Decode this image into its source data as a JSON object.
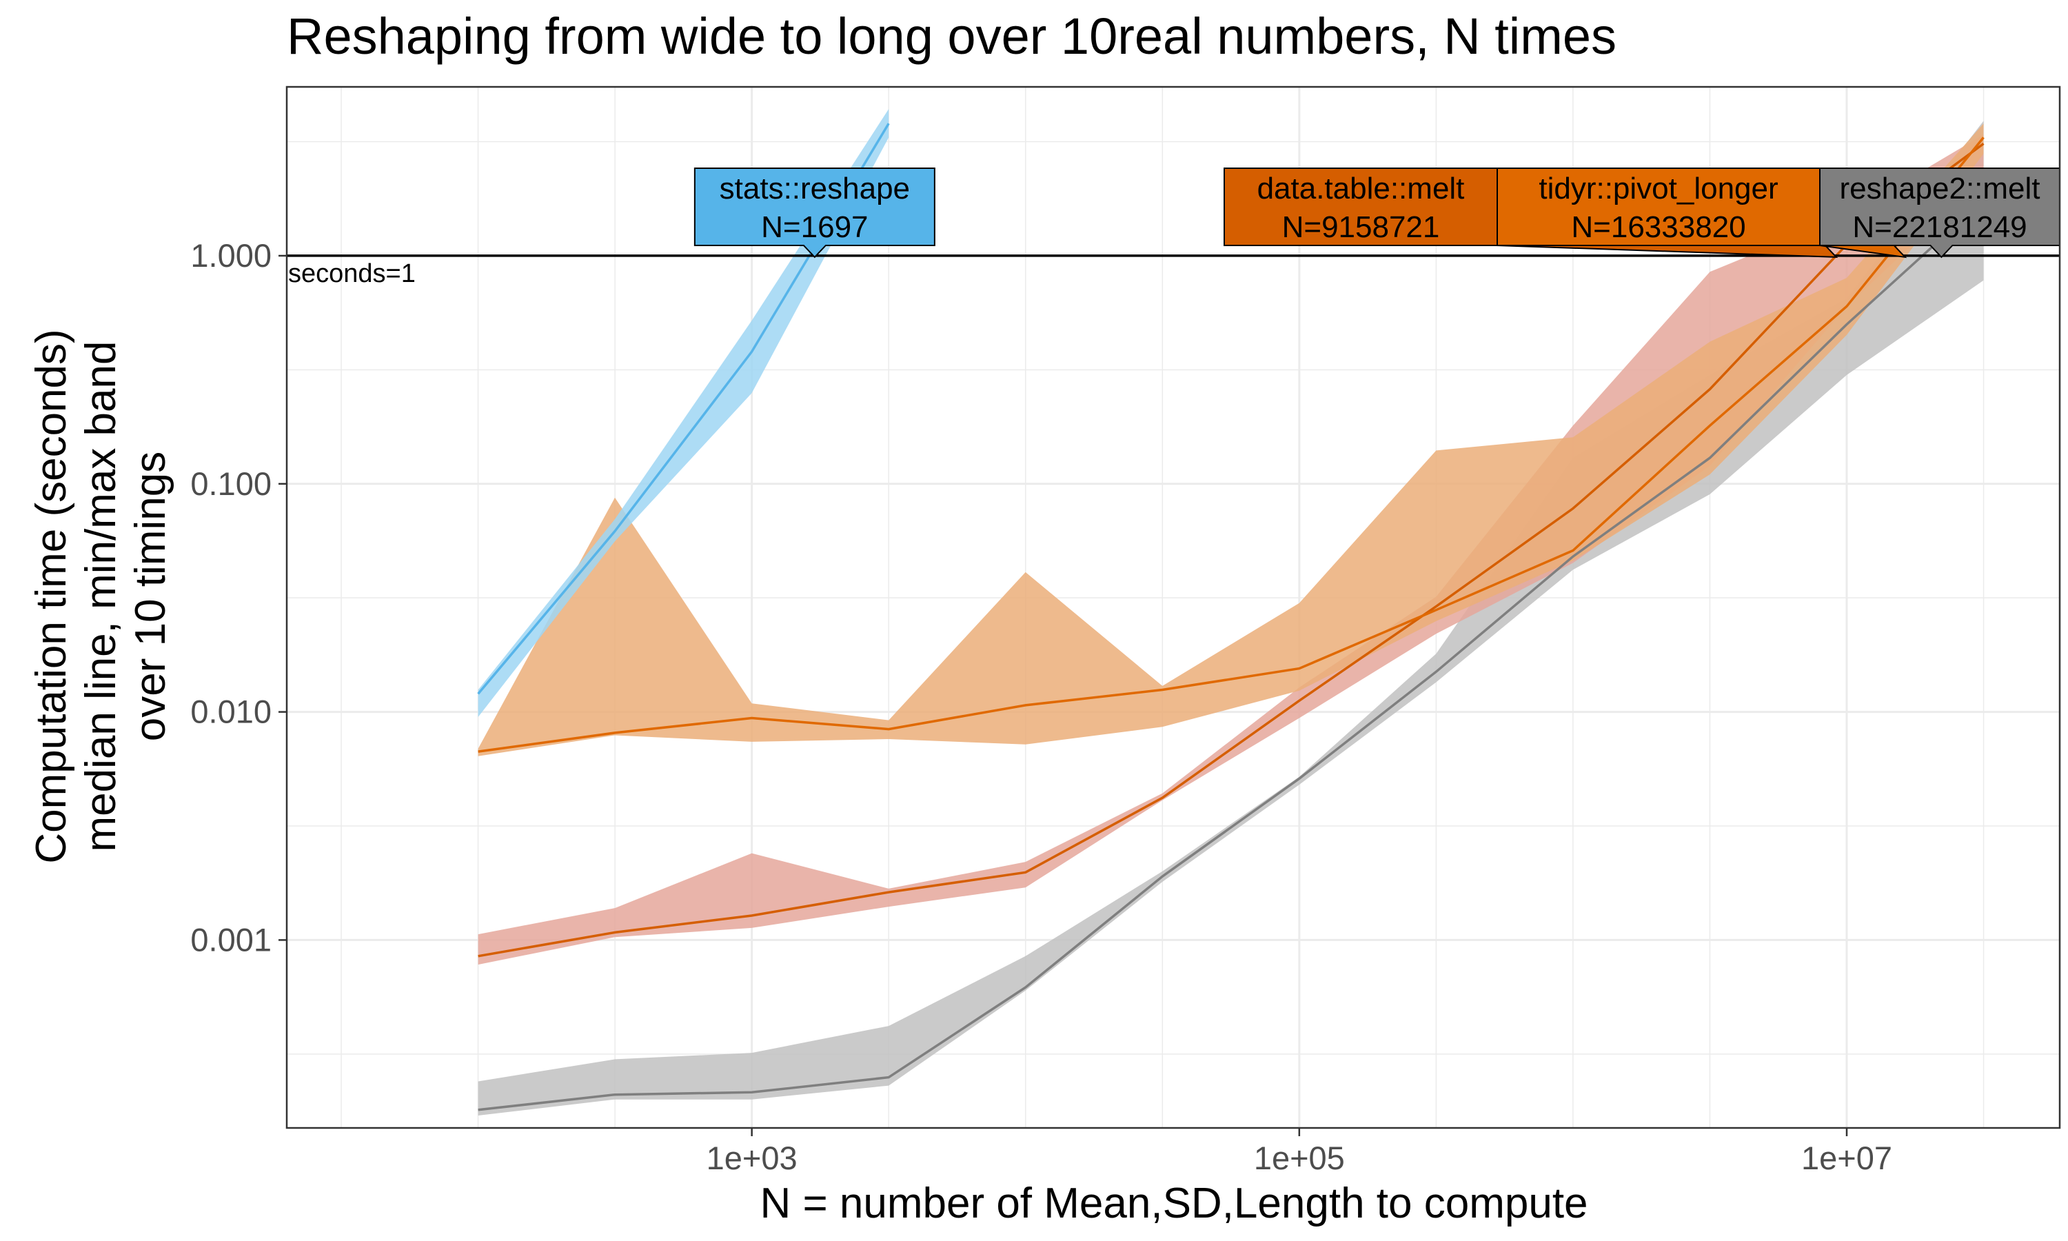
{
  "chart_data": {
    "type": "line",
    "title": "Reshaping from wide to long over 10real numbers, N times",
    "xlabel": "N = number of Mean,SD,Length to compute",
    "ylabel_lines": [
      "Computation time (seconds)",
      "median line, min/max band",
      "over 10 timings"
    ],
    "x_scale": "log10",
    "y_scale": "log10",
    "xlim": [
      20,
      60000000
    ],
    "ylim": [
      0.00015,
      5.5
    ],
    "grid": true,
    "x_ticks": [
      {
        "value": 1000,
        "label": "1e+03"
      },
      {
        "value": 100000,
        "label": "1e+05"
      },
      {
        "value": 10000000,
        "label": "1e+07"
      }
    ],
    "y_ticks": [
      {
        "value": 0.001,
        "label": "0.001"
      },
      {
        "value": 0.01,
        "label": "0.010"
      },
      {
        "value": 0.1,
        "label": "0.100"
      },
      {
        "value": 1,
        "label": "1.000"
      }
    ],
    "hline": {
      "y": 1,
      "label": "seconds=1"
    },
    "series": [
      {
        "name": "stats::reshape",
        "color": "#56B4E9",
        "band_color": "#9FD6F3",
        "x": [
          100,
          316,
          1000,
          3162
        ],
        "median": [
          0.012,
          0.062,
          0.38,
          3.8
        ],
        "min": [
          0.0095,
          0.056,
          0.25,
          3.3
        ],
        "max": [
          0.0125,
          0.07,
          0.52,
          4.4
        ],
        "label_text": "N=1697",
        "label_x": 1697
      },
      {
        "name": "data.table::melt",
        "color": "#D55E00",
        "band_color": "#E5A79B",
        "x": [
          100,
          316,
          1000,
          3162,
          10000,
          31623,
          100000,
          316228,
          1000000,
          3162278,
          10000000,
          31622777
        ],
        "median": [
          0.00085,
          0.00108,
          0.00128,
          0.00162,
          0.00198,
          0.0042,
          0.0112,
          0.029,
          0.078,
          0.26,
          1.12,
          3.1
        ],
        "min": [
          0.00078,
          0.00103,
          0.00113,
          0.0014,
          0.0017,
          0.0041,
          0.0094,
          0.022,
          0.045,
          0.12,
          0.6,
          2.2
        ],
        "max": [
          0.00106,
          0.00138,
          0.0024,
          0.00168,
          0.0022,
          0.0044,
          0.0128,
          0.032,
          0.18,
          0.85,
          1.5,
          3.4
        ],
        "label_text": "N=9158721",
        "label_x": 9158721
      },
      {
        "name": "tidyr::pivot_longer",
        "color": "#E06900",
        "band_color": "#EBAE79",
        "x": [
          100,
          316,
          1000,
          3162,
          10000,
          31623,
          100000,
          316228,
          1000000,
          3162278,
          10000000,
          31622777
        ],
        "median": [
          0.0067,
          0.0081,
          0.0094,
          0.0084,
          0.0107,
          0.0125,
          0.0155,
          0.028,
          0.051,
          0.18,
          0.6,
          3.3
        ],
        "min": [
          0.0064,
          0.0079,
          0.0074,
          0.0076,
          0.0072,
          0.0086,
          0.0124,
          0.025,
          0.046,
          0.11,
          0.45,
          2.8
        ],
        "max": [
          0.0069,
          0.087,
          0.0109,
          0.0092,
          0.041,
          0.013,
          0.03,
          0.14,
          0.16,
          0.42,
          0.8,
          3.8
        ],
        "label_text": "N=16333820",
        "label_x": 16333820
      },
      {
        "name": "reshape2::melt",
        "color": "#7F7F7F",
        "band_color": "#C1C1C1",
        "x": [
          100,
          316,
          1000,
          3162,
          10000,
          31623,
          100000,
          316228,
          1000000,
          3162278,
          10000000,
          31622777
        ],
        "median": [
          0.00018,
          0.00021,
          0.000215,
          0.00025,
          0.00062,
          0.0019,
          0.0051,
          0.015,
          0.048,
          0.13,
          0.5,
          1.75
        ],
        "min": [
          0.00017,
          0.0002,
          0.0002,
          0.00023,
          0.0006,
          0.0018,
          0.0048,
          0.0135,
          0.042,
          0.09,
          0.3,
          0.78
        ],
        "max": [
          0.00024,
          0.0003,
          0.00032,
          0.00042,
          0.00085,
          0.002,
          0.0052,
          0.018,
          0.13,
          0.3,
          0.65,
          3.9
        ],
        "label_text": "N=22181249",
        "label_x": 22181249
      }
    ]
  }
}
